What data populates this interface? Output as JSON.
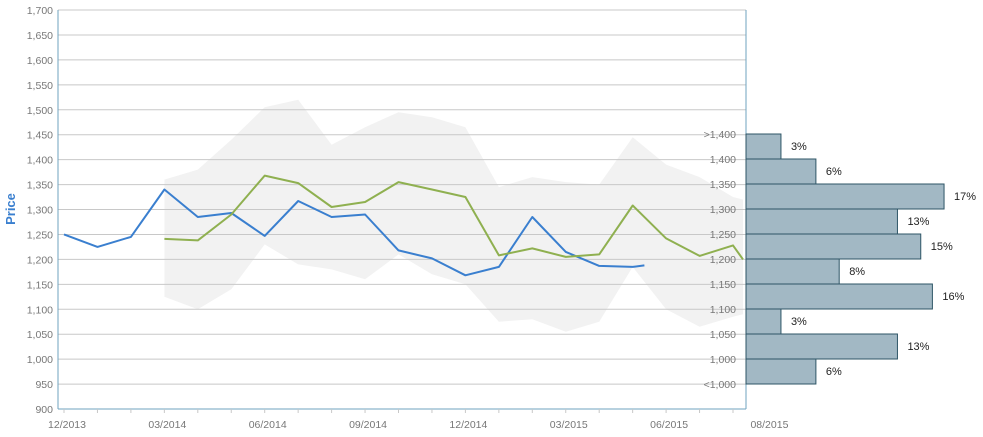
{
  "chart_data": [
    {
      "type": "line",
      "ylabel": "Price",
      "ylim": [
        900,
        1700
      ],
      "yticks": [
        900,
        950,
        1000,
        1050,
        1100,
        1150,
        1200,
        1250,
        1300,
        1350,
        1400,
        1450,
        1500,
        1550,
        1600,
        1650,
        1700
      ],
      "ytick_labels": [
        "900",
        "950",
        "1,000",
        "1,050",
        "1,100",
        "1,150",
        "1,200",
        "1,250",
        "1,300",
        "1,350",
        "1,400",
        "1,450",
        "1,500",
        "1,550",
        "1,600",
        "1,650",
        "1,700"
      ],
      "x_tick_labels": [
        "12/2013",
        "03/2014",
        "06/2014",
        "09/2014",
        "12/2014",
        "03/2015",
        "06/2015",
        "08/2015"
      ],
      "x_tick_months": [
        0,
        3,
        6,
        9,
        12,
        15,
        18,
        21
      ],
      "grid": "horizontal",
      "colors": {
        "blue": "#3a7fcf",
        "green": "#8fb050",
        "band": "#f2f2f2",
        "grid": "#c8c8c8",
        "axis": "#6fa3bf",
        "ylabel": "#3a7fcf",
        "tick_text": "#777777"
      },
      "series": [
        {
          "key": "blue",
          "x": [
            0,
            1,
            2,
            3,
            4,
            5,
            6,
            7,
            8,
            9,
            10,
            11,
            12,
            13,
            14,
            15,
            16,
            17,
            17.35
          ],
          "y": [
            1250,
            1225,
            1245,
            1340,
            1285,
            1293,
            1247,
            1317,
            1285,
            1290,
            1218,
            1202,
            1168,
            1185,
            1285,
            1215,
            1187,
            1185,
            1188
          ]
        },
        {
          "key": "green",
          "x": [
            3,
            4,
            5,
            6,
            7,
            8,
            9,
            10,
            11,
            12,
            13,
            14,
            15,
            16,
            17,
            18,
            19,
            20,
            20.3
          ],
          "y": [
            1241,
            1238,
            1290,
            1368,
            1353,
            1305,
            1315,
            1355,
            1340,
            1325,
            1208,
            1222,
            1205,
            1210,
            1308,
            1242,
            1207,
            1228,
            1200
          ]
        }
      ],
      "band": {
        "x": [
          3,
          4,
          5,
          6,
          7,
          8,
          9,
          10,
          11,
          12,
          13,
          14,
          15,
          16,
          17,
          18,
          19,
          20,
          20.3
        ],
        "upper": [
          1360,
          1380,
          1440,
          1505,
          1520,
          1430,
          1465,
          1495,
          1485,
          1465,
          1345,
          1365,
          1355,
          1350,
          1445,
          1390,
          1365,
          1325,
          1320
        ],
        "lower": [
          1125,
          1100,
          1140,
          1230,
          1190,
          1180,
          1160,
          1210,
          1170,
          1150,
          1075,
          1080,
          1055,
          1075,
          1185,
          1100,
          1065,
          1085,
          1090
        ]
      }
    },
    {
      "type": "bar",
      "orientation": "horizontal",
      "categories": [
        ">1,400",
        "1,400",
        "1,350",
        "1,300",
        "1,250",
        "1,200",
        "1,150",
        "1,100",
        "1,050",
        "1,000",
        "<1,000"
      ],
      "bins": [
        {
          "label": "3%",
          "value": 3
        },
        {
          "label": "6%",
          "value": 6
        },
        {
          "label": "17%",
          "value": 17
        },
        {
          "label": "13%",
          "value": 13
        },
        {
          "label": "15%",
          "value": 15
        },
        {
          "label": "8%",
          "value": 8
        },
        {
          "label": "16%",
          "value": 16
        },
        {
          "label": "3%",
          "value": 3
        },
        {
          "label": "13%",
          "value": 13
        },
        {
          "label": "6%",
          "value": 6
        }
      ],
      "colors": {
        "bar_fill": "#a2b8c4",
        "bar_stroke": "#2e5566",
        "label": "#222222"
      }
    }
  ]
}
